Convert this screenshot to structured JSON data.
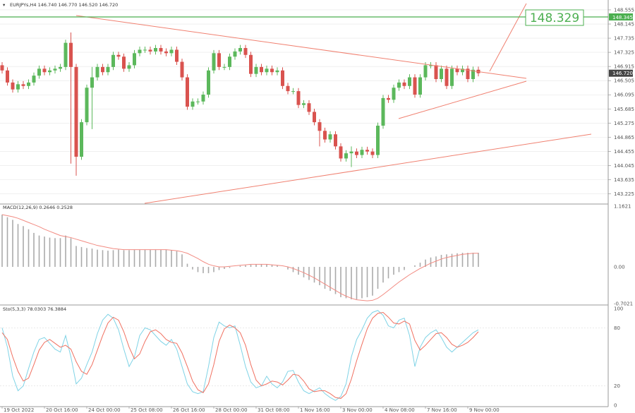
{
  "chart_data": {
    "type": "candlestick",
    "symbol_info": "EURJPYs,H4  146.740 146.770 146.520 146.720",
    "colors": {
      "bull": "#5cb85c",
      "bear": "#d9534f",
      "macd_hist": "#aaaaaa",
      "signal": "#f28b82",
      "stoch_k": "#7fd3e6",
      "stoch_d": "#f07060",
      "trend": "#f08070",
      "level": "#4caf50",
      "grid": "#e6e6e6"
    },
    "price_axis": {
      "ylim": [
        142.95,
        148.8
      ],
      "ticks": [
        "148.555",
        "148.145",
        "147.735",
        "147.325",
        "146.915",
        "146.505",
        "146.095",
        "145.685",
        "145.275",
        "144.865",
        "144.455",
        "144.045",
        "143.635",
        "143.225"
      ],
      "current_label": "146.720",
      "current_value": 146.72,
      "level_label": "148.345",
      "level_value": 148.345,
      "callout": "148.329"
    },
    "time_labels": [
      "19 Oct 2022",
      "20 Oct 16:00",
      "24 Oct 00:00",
      "25 Oct 08:00",
      "26 Oct 16:00",
      "28 Oct 00:00",
      "31 Oct 08:00",
      "1 Nov 16:00",
      "3 Nov 00:00",
      "4 Nov 08:00",
      "7 Nov 16:00",
      "9 Nov 00:00"
    ],
    "time_label_index": [
      0,
      8,
      16,
      24,
      32,
      40,
      48,
      56,
      64,
      72,
      80,
      88
    ],
    "closes": [
      146.8,
      146.45,
      146.25,
      146.4,
      146.35,
      146.45,
      146.65,
      146.85,
      146.75,
      146.8,
      146.85,
      146.9,
      147.6,
      146.9,
      144.3,
      145.3,
      146.3,
      146.6,
      146.9,
      146.75,
      146.9,
      147.25,
      147.2,
      146.85,
      146.95,
      147.3,
      147.4,
      147.4,
      147.35,
      147.45,
      147.35,
      147.3,
      147.4,
      147.05,
      146.6,
      145.75,
      145.9,
      145.9,
      146.1,
      146.8,
      147.3,
      146.9,
      146.9,
      147.2,
      147.35,
      147.45,
      147.25,
      146.7,
      146.9,
      146.75,
      146.85,
      146.75,
      146.8,
      146.35,
      146.2,
      146.2,
      145.8,
      145.85,
      145.6,
      145.3,
      145.05,
      144.8,
      144.95,
      144.6,
      144.25,
      144.4,
      144.45,
      144.35,
      144.5,
      144.45,
      144.35,
      145.2,
      146.0,
      145.95,
      146.3,
      146.45,
      146.35,
      146.6,
      146.1,
      146.6,
      146.95,
      146.95,
      146.55,
      146.85,
      146.35,
      146.85,
      146.75,
      146.85,
      146.55,
      146.82,
      146.72
    ],
    "indicators": {
      "macd": {
        "label": "MACD(12,26,9) 0.2646 0.2528",
        "ylim": [
          -0.7021,
          1.1621
        ],
        "ticks": [
          "1.1621",
          "0.00",
          "-0.7021"
        ],
        "histogram": [
          1.0,
          0.95,
          0.9,
          0.82,
          0.78,
          0.72,
          0.65,
          0.6,
          0.58,
          0.56,
          0.55,
          0.55,
          0.6,
          0.55,
          0.4,
          0.38,
          0.36,
          0.35,
          0.33,
          0.32,
          0.31,
          0.32,
          0.33,
          0.32,
          0.32,
          0.33,
          0.33,
          0.33,
          0.33,
          0.33,
          0.33,
          0.33,
          0.32,
          0.3,
          0.24,
          0.06,
          -0.05,
          -0.1,
          -0.12,
          -0.12,
          -0.1,
          -0.06,
          -0.04,
          -0.02,
          0.0,
          0.02,
          0.03,
          0.04,
          0.05,
          0.05,
          0.05,
          0.04,
          0.03,
          0.0,
          -0.05,
          -0.1,
          -0.15,
          -0.2,
          -0.25,
          -0.3,
          -0.35,
          -0.42,
          -0.46,
          -0.52,
          -0.58,
          -0.6,
          -0.62,
          -0.62,
          -0.6,
          -0.58,
          -0.55,
          -0.42,
          -0.3,
          -0.22,
          -0.15,
          -0.1,
          -0.06,
          0.0,
          0.03,
          0.08,
          0.14,
          0.18,
          0.2,
          0.23,
          0.24,
          0.25,
          0.26,
          0.27,
          0.27,
          0.27,
          0.27
        ],
        "signal": [
          1.0,
          0.98,
          0.96,
          0.93,
          0.89,
          0.85,
          0.81,
          0.77,
          0.72,
          0.68,
          0.64,
          0.6,
          0.58,
          0.56,
          0.53,
          0.5,
          0.47,
          0.44,
          0.41,
          0.39,
          0.37,
          0.35,
          0.34,
          0.33,
          0.33,
          0.33,
          0.33,
          0.33,
          0.33,
          0.33,
          0.33,
          0.33,
          0.32,
          0.31,
          0.29,
          0.26,
          0.21,
          0.16,
          0.1,
          0.05,
          0.02,
          0.0,
          0.0,
          0.01,
          0.02,
          0.03,
          0.04,
          0.05,
          0.05,
          0.05,
          0.05,
          0.04,
          0.03,
          0.02,
          0.0,
          -0.03,
          -0.07,
          -0.11,
          -0.16,
          -0.21,
          -0.27,
          -0.33,
          -0.39,
          -0.45,
          -0.51,
          -0.56,
          -0.6,
          -0.63,
          -0.64,
          -0.65,
          -0.64,
          -0.6,
          -0.53,
          -0.45,
          -0.37,
          -0.29,
          -0.22,
          -0.15,
          -0.09,
          -0.03,
          0.02,
          0.07,
          0.11,
          0.15,
          0.18,
          0.2,
          0.22,
          0.24,
          0.25,
          0.26,
          0.26
        ]
      },
      "stoch": {
        "label": "Sto(5,3,3) 78.0303 76.3884",
        "ylim": [
          0,
          100
        ],
        "ticks": [
          "100",
          "80",
          "20",
          "0"
        ],
        "k": [
          80,
          60,
          30,
          15,
          20,
          38,
          55,
          68,
          70,
          64,
          58,
          55,
          72,
          50,
          22,
          28,
          42,
          55,
          74,
          88,
          94,
          90,
          78,
          58,
          40,
          50,
          72,
          80,
          78,
          72,
          66,
          62,
          68,
          58,
          40,
          22,
          14,
          12,
          14,
          40,
          70,
          86,
          82,
          80,
          82,
          62,
          40,
          24,
          18,
          20,
          30,
          22,
          18,
          24,
          35,
          36,
          24,
          15,
          12,
          15,
          18,
          12,
          8,
          5,
          9,
          22,
          50,
          68,
          78,
          90,
          96,
          98,
          93,
          82,
          80,
          88,
          90,
          72,
          40,
          60,
          70,
          75,
          78,
          70,
          60,
          55,
          60,
          65,
          70,
          75,
          78
        ],
        "d": [
          75,
          68,
          50,
          35,
          25,
          28,
          42,
          57,
          65,
          68,
          64,
          60,
          62,
          58,
          45,
          35,
          32,
          42,
          57,
          72,
          85,
          91,
          88,
          76,
          60,
          48,
          53,
          66,
          76,
          78,
          74,
          68,
          65,
          64,
          54,
          40,
          25,
          16,
          13,
          22,
          42,
          66,
          79,
          83,
          80,
          75,
          62,
          42,
          26,
          20,
          22,
          25,
          24,
          21,
          26,
          32,
          31,
          25,
          17,
          14,
          15,
          15,
          12,
          8,
          7,
          12,
          27,
          46,
          63,
          79,
          90,
          95,
          96,
          91,
          85,
          84,
          87,
          84,
          67,
          57,
          62,
          68,
          74,
          75,
          70,
          63,
          60,
          62,
          65,
          70,
          76
        ]
      }
    }
  }
}
